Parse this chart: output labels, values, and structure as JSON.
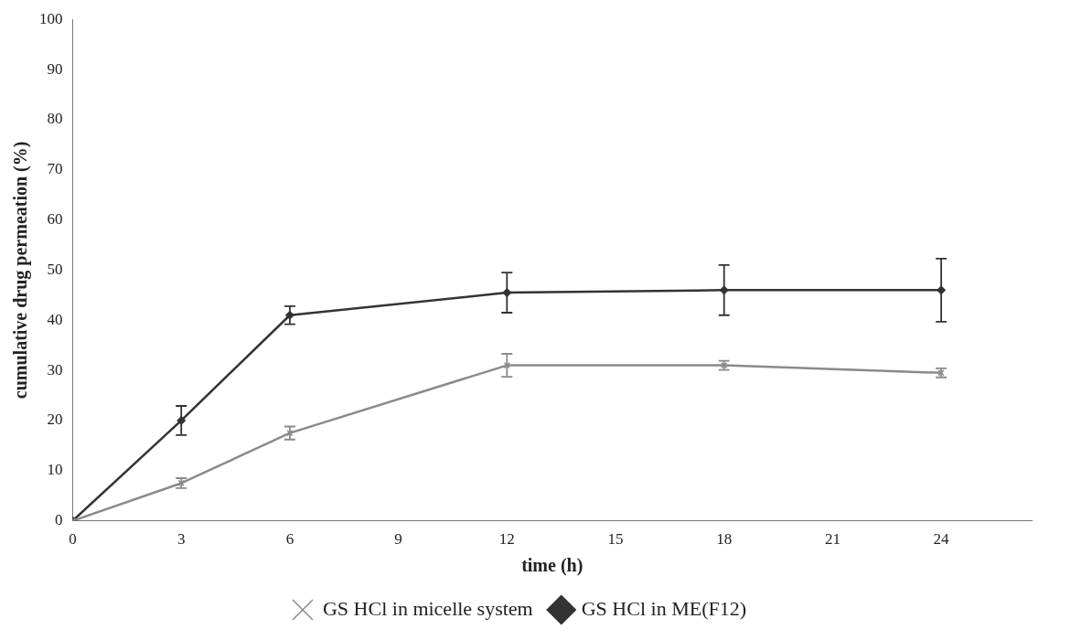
{
  "chart_data": {
    "type": "line",
    "xlabel": "time (h)",
    "ylabel": "cumulative drug permeation (%)",
    "xlim": [
      0,
      26.5
    ],
    "xticks": [
      0,
      3,
      6,
      9,
      12,
      15,
      18,
      21,
      24
    ],
    "ylim": [
      0,
      100
    ],
    "yticks": [
      0,
      10,
      20,
      30,
      40,
      50,
      60,
      70,
      80,
      90,
      100
    ],
    "x": [
      0,
      3,
      6,
      12,
      18,
      24
    ],
    "grid": false,
    "legend": "bottom",
    "series": [
      {
        "name": "GS HCl in micelle system",
        "color": "#8a8a8a",
        "marker": "cross",
        "values": [
          0,
          7.5,
          17.5,
          31,
          31,
          29.5
        ],
        "errors": [
          null,
          1,
          1.3,
          2.3,
          0.9,
          0.9
        ]
      },
      {
        "name": "GS HCl in ME(F12)",
        "color": "#333333",
        "marker": "diamond",
        "values": [
          0,
          20,
          41,
          45.5,
          46,
          46
        ],
        "errors": [
          null,
          2.9,
          1.8,
          4,
          5,
          6.3
        ]
      }
    ]
  }
}
